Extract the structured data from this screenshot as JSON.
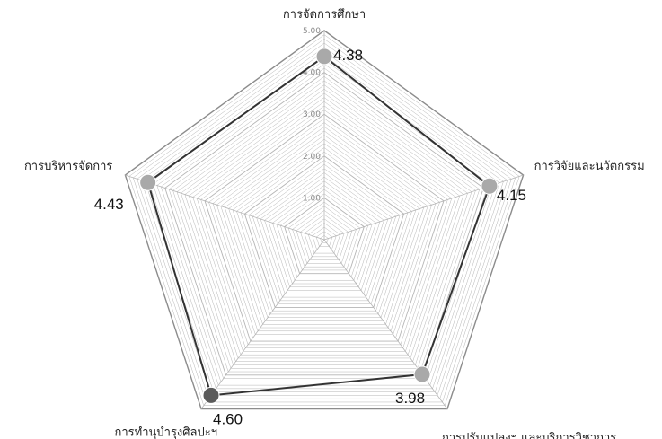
{
  "chart_data": {
    "type": "radar",
    "categories": [
      "การจัดการศึกษา",
      "การวิจัยและนวัตกรรม",
      "การปรับแปลงฯ และบริการวิชาการ",
      "การทำนุบำรุงศิลปะฯ",
      "การบริหารจัดการ"
    ],
    "values": [
      4.38,
      4.15,
      3.98,
      4.6,
      4.43
    ],
    "value_labels": [
      "4.38",
      "4.15",
      "3.98",
      "4.60",
      "4.43"
    ],
    "tick_labels": [
      "1.00",
      "2.00",
      "3.00",
      "4.00",
      "5.00"
    ],
    "rlim": [
      0,
      5
    ],
    "grid": true,
    "colors": {
      "line": "#333333",
      "marker": "#a9a9a9",
      "marker_highlight": "#5a5a5a",
      "grid": "#b5b5b5",
      "outer": "#8c8c8c"
    }
  }
}
